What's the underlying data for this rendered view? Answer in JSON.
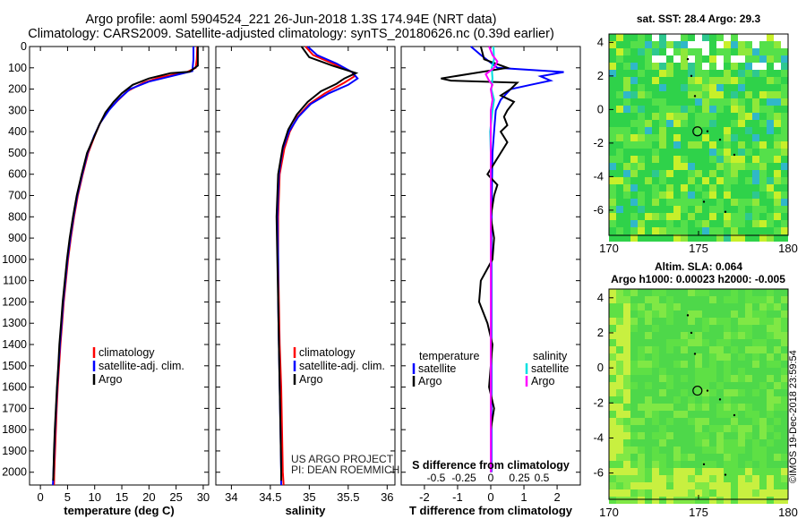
{
  "title_line1": "Argo profile: aoml 5904524_221 26-Jun-2018 1.3S 174.94E (NRT data)",
  "title_line2": "Climatology: CARS2009. Satellite-adjusted climatology: synTS_20180626.nc (0.39d earlier)",
  "colors": {
    "climatology": "#ff0000",
    "satellite": "#0000ff",
    "argo": "#000000",
    "argo_salinity_diff": "#ff00ff",
    "satellite_salinity_diff": "#00e0e0"
  },
  "chart_data": [
    {
      "type": "line",
      "xlabel": "temperature (deg C)",
      "xticks": [
        "0",
        "5",
        "10",
        "15",
        "20",
        "25",
        "30"
      ],
      "xlim": [
        -2,
        31
      ],
      "ylim": [
        2060,
        0
      ],
      "yticks": [
        "0",
        "100",
        "200",
        "300",
        "400",
        "500",
        "600",
        "700",
        "800",
        "900",
        "1000",
        "1100",
        "1200",
        "1300",
        "1400",
        "1500",
        "1600",
        "1700",
        "1800",
        "1900",
        "2000"
      ],
      "legend": [
        "climatology",
        "satellite-adj. clim.",
        "Argo"
      ],
      "series": [
        {
          "name": "climatology",
          "color": "#ff0000",
          "points": [
            [
              28.9,
              0
            ],
            [
              28.8,
              60
            ],
            [
              28.6,
              100
            ],
            [
              27,
              120
            ],
            [
              22,
              145
            ],
            [
              19,
              170
            ],
            [
              16,
              210
            ],
            [
              14,
              260
            ],
            [
              12.5,
              300
            ],
            [
              11,
              360
            ],
            [
              10,
              420
            ],
            [
              8.8,
              500
            ],
            [
              7.8,
              600
            ],
            [
              6.9,
              700
            ],
            [
              6.2,
              800
            ],
            [
              5.6,
              900
            ],
            [
              5.1,
              1000
            ],
            [
              4.7,
              1100
            ],
            [
              4.3,
              1200
            ],
            [
              4,
              1300
            ],
            [
              3.7,
              1400
            ],
            [
              3.45,
              1500
            ],
            [
              3.2,
              1600
            ],
            [
              3,
              1700
            ],
            [
              2.85,
              1800
            ],
            [
              2.7,
              1900
            ],
            [
              2.55,
              2000
            ],
            [
              2.5,
              2060
            ]
          ]
        },
        {
          "name": "satellite-adj. clim.",
          "color": "#0000ff",
          "points": [
            [
              28.2,
              0
            ],
            [
              28.2,
              60
            ],
            [
              28,
              115
            ],
            [
              24,
              140
            ],
            [
              20,
              165
            ],
            [
              16.5,
              200
            ],
            [
              14.3,
              250
            ],
            [
              12.6,
              300
            ],
            [
              11,
              360
            ],
            [
              9.9,
              420
            ],
            [
              8.7,
              500
            ],
            [
              7.7,
              600
            ],
            [
              6.8,
              700
            ],
            [
              6.1,
              800
            ],
            [
              5.5,
              900
            ],
            [
              5,
              1000
            ],
            [
              4.6,
              1100
            ],
            [
              4.2,
              1200
            ],
            [
              3.9,
              1300
            ],
            [
              3.6,
              1400
            ],
            [
              3.35,
              1500
            ],
            [
              3.1,
              1600
            ],
            [
              2.9,
              1700
            ],
            [
              2.7,
              1800
            ],
            [
              2.55,
              1900
            ],
            [
              2.4,
              2000
            ],
            [
              2.3,
              2060
            ]
          ]
        },
        {
          "name": "Argo",
          "color": "#000000",
          "points": [
            [
              29,
              0
            ],
            [
              29,
              90
            ],
            [
              27.5,
              118
            ],
            [
              24,
              125
            ],
            [
              20,
              150
            ],
            [
              17,
              180
            ],
            [
              15,
              220
            ],
            [
              13.5,
              260
            ],
            [
              12,
              310
            ],
            [
              10.8,
              370
            ],
            [
              9.8,
              430
            ],
            [
              8.6,
              500
            ],
            [
              7.6,
              600
            ],
            [
              6.7,
              700
            ],
            [
              6,
              800
            ],
            [
              5.4,
              900
            ],
            [
              4.9,
              1000
            ],
            [
              4.5,
              1100
            ],
            [
              4.1,
              1200
            ],
            [
              3.8,
              1300
            ],
            [
              3.5,
              1400
            ],
            [
              3.3,
              1500
            ],
            [
              3.05,
              1600
            ],
            [
              2.85,
              1700
            ],
            [
              2.65,
              1800
            ],
            [
              2.5,
              1900
            ],
            [
              2.4,
              2000
            ],
            [
              2.35,
              2040
            ]
          ]
        }
      ]
    },
    {
      "type": "line",
      "xlabel": "salinity",
      "xticks": [
        "34",
        "34.5",
        "35",
        "35.5",
        "36"
      ],
      "xlim": [
        33.8,
        36.1
      ],
      "ylim": [
        2060,
        0
      ],
      "legend": [
        "climatology",
        "satellite-adj. clim.",
        "Argo"
      ],
      "series": [
        {
          "name": "climatology",
          "color": "#ff0000",
          "points": [
            [
              34.95,
              0
            ],
            [
              35.05,
              40
            ],
            [
              35.3,
              80
            ],
            [
              35.55,
              120
            ],
            [
              35.58,
              140
            ],
            [
              35.45,
              170
            ],
            [
              35.2,
              220
            ],
            [
              35,
              270
            ],
            [
              34.85,
              330
            ],
            [
              34.75,
              400
            ],
            [
              34.68,
              480
            ],
            [
              34.62,
              600
            ],
            [
              34.6,
              800
            ],
            [
              34.6,
              1000
            ],
            [
              34.61,
              1200
            ],
            [
              34.62,
              1400
            ],
            [
              34.64,
              1600
            ],
            [
              34.65,
              1800
            ],
            [
              34.66,
              2000
            ],
            [
              34.67,
              2060
            ]
          ]
        },
        {
          "name": "satellite-adj. clim.",
          "color": "#0000ff",
          "points": [
            [
              34.98,
              0
            ],
            [
              35.1,
              40
            ],
            [
              35.35,
              80
            ],
            [
              35.55,
              120
            ],
            [
              35.62,
              150
            ],
            [
              35.5,
              180
            ],
            [
              35.25,
              220
            ],
            [
              35.02,
              270
            ],
            [
              34.86,
              330
            ],
            [
              34.74,
              400
            ],
            [
              34.66,
              480
            ],
            [
              34.61,
              600
            ],
            [
              34.59,
              800
            ],
            [
              34.6,
              1000
            ],
            [
              34.6,
              1200
            ],
            [
              34.61,
              1400
            ],
            [
              34.62,
              1600
            ],
            [
              34.63,
              1800
            ],
            [
              34.64,
              2000
            ],
            [
              34.64,
              2060
            ]
          ]
        },
        {
          "name": "Argo",
          "color": "#000000",
          "points": [
            [
              34.9,
              0
            ],
            [
              35.0,
              50
            ],
            [
              35.3,
              90
            ],
            [
              35.6,
              125
            ],
            [
              35.45,
              150
            ],
            [
              35.35,
              175
            ],
            [
              35.15,
              210
            ],
            [
              34.98,
              260
            ],
            [
              34.84,
              320
            ],
            [
              34.73,
              390
            ],
            [
              34.66,
              470
            ],
            [
              34.6,
              600
            ],
            [
              34.58,
              800
            ],
            [
              34.59,
              1000
            ],
            [
              34.6,
              1200
            ],
            [
              34.61,
              1400
            ],
            [
              34.62,
              1600
            ],
            [
              34.63,
              1800
            ],
            [
              34.64,
              2000
            ],
            [
              34.64,
              2040
            ]
          ]
        }
      ],
      "credit": [
        "US ARGO PROJECT",
        "PI: DEAN ROEMMICH"
      ]
    },
    {
      "type": "line",
      "xlabel": "T difference from climatology",
      "xticks": [
        "-2",
        "-1",
        "0",
        "1",
        "2"
      ],
      "xlim": [
        -2.7,
        2.7
      ],
      "top_axis_label": "S difference from climatology",
      "top_ticks": [
        "-0.5",
        "-0.25",
        "0",
        "0.25",
        "0.5"
      ],
      "ylim": [
        2060,
        0
      ],
      "legend_left_title": "temperature",
      "legend_left": [
        "satellite",
        "Argo"
      ],
      "legend_right_title": "salinity",
      "legend_right": [
        "satellite",
        "Argo"
      ],
      "series": [
        {
          "name": "temperature satellite",
          "color": "#0000ff",
          "points": [
            [
              -0.6,
              0
            ],
            [
              -0.3,
              40
            ],
            [
              0.2,
              100
            ],
            [
              2.2,
              120
            ],
            [
              1.5,
              140
            ],
            [
              1.8,
              160
            ],
            [
              1.2,
              180
            ],
            [
              0.6,
              200
            ],
            [
              0.3,
              250
            ],
            [
              0.15,
              300
            ],
            [
              0.1,
              400
            ],
            [
              0.05,
              500
            ],
            [
              0.03,
              700
            ],
            [
              0.02,
              900
            ],
            [
              0.02,
              1200
            ],
            [
              0.02,
              1500
            ],
            [
              0.02,
              2000
            ]
          ]
        },
        {
          "name": "temperature Argo",
          "color": "#000000",
          "points": [
            [
              -0.3,
              0
            ],
            [
              -0.2,
              60
            ],
            [
              0.5,
              100
            ],
            [
              -1.5,
              150
            ],
            [
              -1.2,
              160
            ],
            [
              0.8,
              170
            ],
            [
              0.6,
              200
            ],
            [
              0.3,
              230
            ],
            [
              0.7,
              260
            ],
            [
              0.5,
              300
            ],
            [
              0.4,
              330
            ],
            [
              0.5,
              370
            ],
            [
              0.3,
              400
            ],
            [
              0.5,
              450
            ],
            [
              0.3,
              500
            ],
            [
              0.1,
              550
            ],
            [
              -0.1,
              600
            ],
            [
              0.2,
              650
            ],
            [
              0.1,
              700
            ],
            [
              0.0,
              800
            ],
            [
              0.1,
              900
            ],
            [
              0.05,
              1000
            ],
            [
              -0.3,
              1100
            ],
            [
              -0.35,
              1200
            ],
            [
              -0.1,
              1300
            ],
            [
              0.05,
              1400
            ],
            [
              0.0,
              1500
            ],
            [
              -0.05,
              1600
            ],
            [
              0.1,
              1700
            ],
            [
              0.0,
              1800
            ],
            [
              0.0,
              2000
            ]
          ]
        },
        {
          "name": "salinity satellite",
          "color": "#00e0e0",
          "points": [
            [
              0.08,
              0
            ],
            [
              0.1,
              60
            ],
            [
              0.03,
              100
            ],
            [
              0.05,
              150
            ],
            [
              0.02,
              200
            ],
            [
              0.1,
              250
            ],
            [
              0.05,
              300
            ],
            [
              -0.02,
              400
            ],
            [
              0.0,
              500
            ],
            [
              0.0,
              700
            ],
            [
              0.0,
              1000
            ],
            [
              0.0,
              1300
            ],
            [
              0.0,
              1600
            ],
            [
              0.0,
              2000
            ]
          ]
        },
        {
          "name": "salinity Argo",
          "color": "#ff00ff",
          "points": [
            [
              -0.05,
              0
            ],
            [
              0.05,
              40
            ],
            [
              0.2,
              70
            ],
            [
              0.1,
              100
            ],
            [
              -0.15,
              130
            ],
            [
              -0.05,
              160
            ],
            [
              0.05,
              180
            ],
            [
              0.0,
              200
            ],
            [
              0.05,
              250
            ],
            [
              0.0,
              300
            ],
            [
              0.0,
              500
            ],
            [
              0.0,
              800
            ],
            [
              0.0,
              1100
            ],
            [
              0.0,
              1400
            ],
            [
              0.0,
              2000
            ]
          ]
        }
      ]
    },
    {
      "type": "heatmap",
      "title": "sat. SST: 28.4 Argo: 29.3",
      "xticks": [
        "170",
        "175",
        "180"
      ],
      "yticks": [
        "4",
        "2",
        "0",
        "-2",
        "-4",
        "-6"
      ],
      "xlim": [
        170,
        180
      ],
      "ylim": [
        -7.5,
        4.5
      ],
      "marker": [
        174.94,
        -1.3
      ]
    },
    {
      "type": "heatmap",
      "title_line1": "Altim. SLA: 0.064",
      "title_line2": "Argo h1000: 0.00023 h2000: -0.005",
      "xticks": [
        "170",
        "175",
        "180"
      ],
      "yticks": [
        "4",
        "2",
        "0",
        "-2",
        "-4",
        "-6"
      ],
      "xlim": [
        170,
        180
      ],
      "ylim": [
        -7.5,
        4.5
      ],
      "marker": [
        174.94,
        -1.3
      ]
    }
  ],
  "side_credit": "©IMOS 19-Dec-2018 23:59:54"
}
